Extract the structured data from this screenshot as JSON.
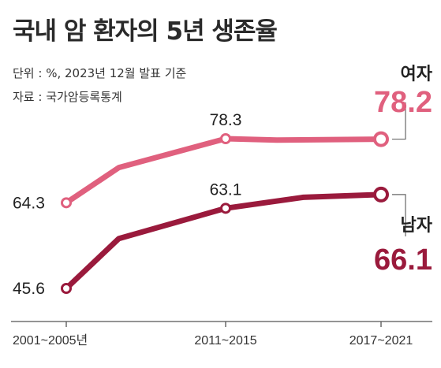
{
  "title": "국내 암 환자의 5년 생존율",
  "unit_note": "단위 : %, 2023년 12월 발표 기준",
  "source_note": "자료 : 국가암등록통계",
  "chart_data": {
    "type": "line",
    "title": "국내 암 환자의 5년 생존율",
    "categories": [
      "2001~2005년",
      "2011~2015",
      "2017~2021"
    ],
    "x_ticks": [
      "2001~2005년",
      "2011~2015",
      "2017~2021"
    ],
    "series": [
      {
        "name": "여자",
        "color": "#e0607e",
        "points": [
          [
            0,
            64.3
          ],
          [
            0.33,
            72.0
          ],
          [
            1,
            78.3
          ],
          [
            1.33,
            78.0
          ],
          [
            2,
            78.2
          ]
        ],
        "labels": [
          {
            "x": 0,
            "text": "64.3"
          },
          {
            "x": 1,
            "text": "78.3"
          },
          {
            "x": 2,
            "text": "78.2"
          }
        ]
      },
      {
        "name": "남자",
        "color": "#9a1a3c",
        "points": [
          [
            0,
            45.6
          ],
          [
            0.33,
            56.5
          ],
          [
            1,
            63.1
          ],
          [
            1.5,
            65.5
          ],
          [
            2,
            66.1
          ]
        ],
        "labels": [
          {
            "x": 0,
            "text": "45.6"
          },
          {
            "x": 1,
            "text": "63.1"
          },
          {
            "x": 2,
            "text": "66.1"
          }
        ]
      }
    ],
    "ylim": [
      40,
      82
    ],
    "grid": false,
    "legend": "right"
  }
}
